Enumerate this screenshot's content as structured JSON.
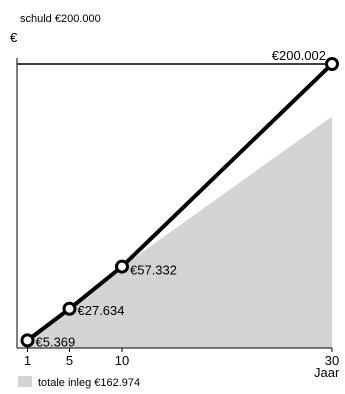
{
  "header": {
    "debt_label": "schuld €200.000",
    "currency_symbol": "€"
  },
  "legend": {
    "deposit_label": "totale inleg €162.974",
    "deposit_color": "#d4d4d4"
  },
  "colors": {
    "line": "#000000",
    "marker_fill": "#ffffff",
    "area": "#d4d4d4",
    "debt_line": "#000000"
  },
  "chart_data": {
    "type": "line",
    "title": "",
    "xlabel": "Jaar",
    "ylabel": "€",
    "x_ticks": [
      1,
      5,
      10,
      30
    ],
    "x_tick_labels": [
      "1",
      "5",
      "10",
      "30"
    ],
    "xlim": [
      0,
      30
    ],
    "ylim": [
      0,
      200000
    ],
    "reference_line": {
      "name": "schuld",
      "value": 200000
    },
    "series": [
      {
        "type": "line",
        "x": [
          1,
          5,
          10,
          30
        ],
        "values": [
          5369,
          27634,
          57332,
          200002
        ],
        "labels": [
          "€5.369",
          "€27.634",
          "€57.332",
          "€200.002"
        ]
      },
      {
        "type": "area",
        "name": "totale inleg",
        "x": [
          1,
          5,
          10,
          30
        ],
        "values": [
          5369,
          27634,
          57332,
          162974
        ]
      }
    ]
  }
}
